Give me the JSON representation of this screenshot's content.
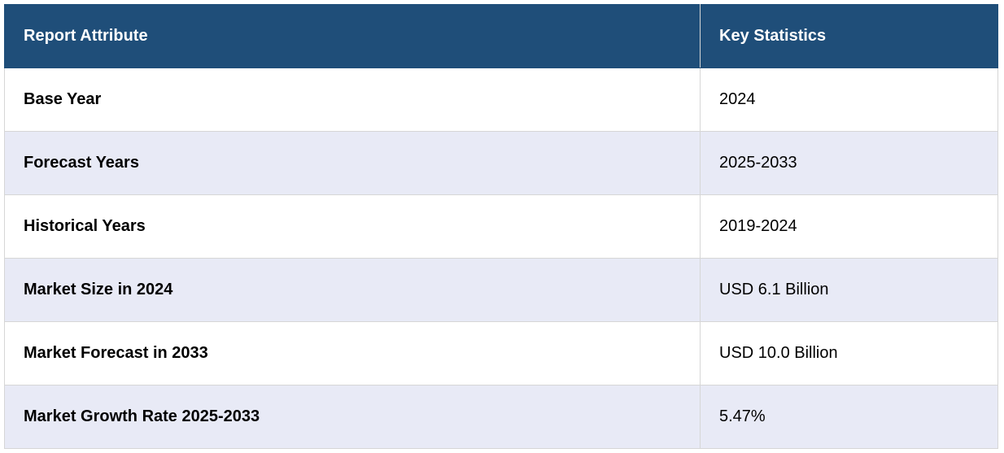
{
  "table": {
    "header": [
      "Report Attribute",
      "Key Statistics"
    ],
    "rows": [
      [
        "Base Year",
        "2024"
      ],
      [
        "Forecast Years",
        "2025-2033"
      ],
      [
        "Historical Years",
        "2019-2024"
      ],
      [
        "Market Size in 2024",
        "USD 6.1 Billion"
      ],
      [
        "Market Forecast in 2033",
        "USD 10.0 Billion"
      ],
      [
        "Market Growth Rate 2025-2033",
        "5.47%"
      ]
    ]
  }
}
